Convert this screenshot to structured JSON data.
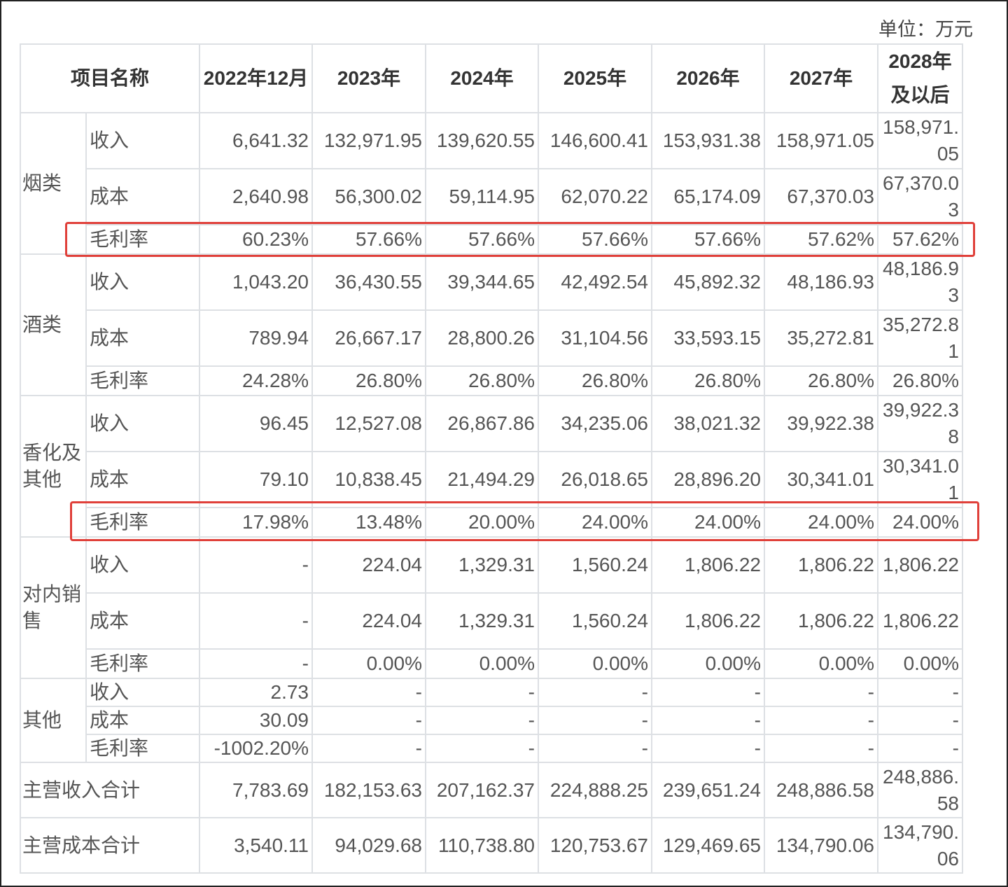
{
  "unit_label": "单位：万元",
  "header": [
    "项目名称",
    "2022年12月",
    "2023年",
    "2024年",
    "2025年",
    "2026年",
    "2027年",
    "2028年及以后"
  ],
  "groups": [
    {
      "name": "烟类",
      "rows": [
        {
          "label": "收入",
          "values": [
            "6,641.32",
            "132,971.95",
            "139,620.55",
            "146,600.41",
            "153,931.38",
            "158,971.05",
            "158,971.05"
          ]
        },
        {
          "label": "成本",
          "values": [
            "2,640.98",
            "56,300.02",
            "59,114.95",
            "62,070.22",
            "65,174.09",
            "67,370.03",
            "67,370.03"
          ]
        },
        {
          "label": "毛利率",
          "values": [
            "60.23%",
            "57.66%",
            "57.66%",
            "57.66%",
            "57.66%",
            "57.62%",
            "57.62%"
          ],
          "highlighted": true
        }
      ]
    },
    {
      "name": "酒类",
      "rows": [
        {
          "label": "收入",
          "values": [
            "1,043.20",
            "36,430.55",
            "39,344.65",
            "42,492.54",
            "45,892.32",
            "48,186.93",
            "48,186.93"
          ]
        },
        {
          "label": "成本",
          "values": [
            "789.94",
            "26,667.17",
            "28,800.26",
            "31,104.56",
            "33,593.15",
            "35,272.81",
            "35,272.81"
          ]
        },
        {
          "label": "毛利率",
          "values": [
            "24.28%",
            "26.80%",
            "26.80%",
            "26.80%",
            "26.80%",
            "26.80%",
            "26.80%"
          ]
        }
      ]
    },
    {
      "name": "香化及其他",
      "rows": [
        {
          "label": "收入",
          "values": [
            "96.45",
            "12,527.08",
            "26,867.86",
            "34,235.06",
            "38,021.32",
            "39,922.38",
            "39,922.38"
          ]
        },
        {
          "label": "成本",
          "values": [
            "79.10",
            "10,838.45",
            "21,494.29",
            "26,018.65",
            "28,896.20",
            "30,341.01",
            "30,341.01"
          ]
        },
        {
          "label": "毛利率",
          "values": [
            "17.98%",
            "13.48%",
            "20.00%",
            "24.00%",
            "24.00%",
            "24.00%",
            "24.00%"
          ],
          "highlighted": true
        }
      ]
    },
    {
      "name": "对内销售",
      "rows": [
        {
          "label": "收入",
          "values": [
            "-",
            "224.04",
            "1,329.31",
            "1,560.24",
            "1,806.22",
            "1,806.22",
            "1,806.22"
          ]
        },
        {
          "label": "成本",
          "values": [
            "-",
            "224.04",
            "1,329.31",
            "1,560.24",
            "1,806.22",
            "1,806.22",
            "1,806.22"
          ]
        },
        {
          "label": "毛利率",
          "values": [
            "-",
            "0.00%",
            "0.00%",
            "0.00%",
            "0.00%",
            "0.00%",
            "0.00%"
          ]
        }
      ]
    },
    {
      "name": "其他",
      "rows": [
        {
          "label": "收入",
          "values": [
            "2.73",
            "-",
            "-",
            "-",
            "-",
            "-",
            "-"
          ]
        },
        {
          "label": "成本",
          "values": [
            "30.09",
            "-",
            "-",
            "-",
            "-",
            "-",
            "-"
          ]
        },
        {
          "label": "毛利率",
          "values": [
            "-1002.20%",
            "-",
            "-",
            "-",
            "-",
            "-",
            "-"
          ]
        }
      ]
    }
  ],
  "totals": [
    {
      "label": "主营收入合计",
      "values": [
        "7,783.69",
        "182,153.63",
        "207,162.37",
        "224,888.25",
        "239,651.24",
        "248,886.58",
        "248,886.58"
      ]
    },
    {
      "label": "主营成本合计",
      "values": [
        "3,540.11",
        "94,029.68",
        "110,738.80",
        "120,753.67",
        "129,469.65",
        "134,790.06",
        "134,790.06"
      ]
    }
  ],
  "highlight_color": "#e0403a"
}
